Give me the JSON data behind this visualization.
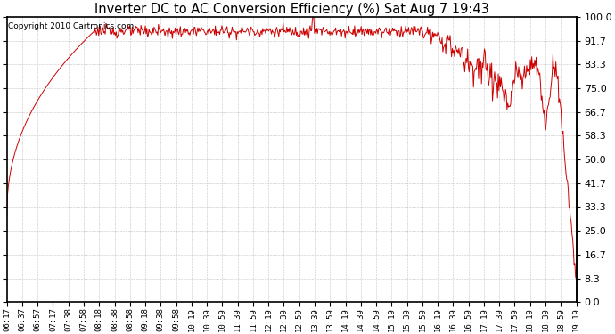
{
  "title": "Inverter DC to AC Conversion Efficiency (%) Sat Aug 7 19:43",
  "copyright": "Copyright 2010 Cartronics.com",
  "line_color": "#cc0000",
  "bg_color": "#ffffff",
  "plot_bg_color": "#ffffff",
  "grid_color": "#aaaaaa",
  "ytick_labels": [
    "0.0",
    "8.3",
    "16.7",
    "25.0",
    "33.3",
    "41.7",
    "50.0",
    "58.3",
    "66.7",
    "75.0",
    "83.3",
    "91.7",
    "100.0"
  ],
  "ytick_values": [
    0.0,
    8.3,
    16.7,
    25.0,
    33.3,
    41.7,
    50.0,
    58.3,
    66.7,
    75.0,
    83.3,
    91.7,
    100.0
  ],
  "ylim": [
    0.0,
    100.0
  ],
  "xtick_labels": [
    "06:17",
    "06:37",
    "06:57",
    "07:17",
    "07:38",
    "07:58",
    "08:18",
    "08:38",
    "08:58",
    "09:18",
    "09:38",
    "09:58",
    "10:19",
    "10:39",
    "10:59",
    "11:39",
    "11:59",
    "12:19",
    "12:39",
    "12:59",
    "13:39",
    "13:59",
    "14:19",
    "14:39",
    "14:59",
    "15:19",
    "15:39",
    "15:59",
    "16:19",
    "16:39",
    "16:59",
    "17:19",
    "17:39",
    "17:59",
    "18:19",
    "18:39",
    "18:59",
    "19:19"
  ]
}
